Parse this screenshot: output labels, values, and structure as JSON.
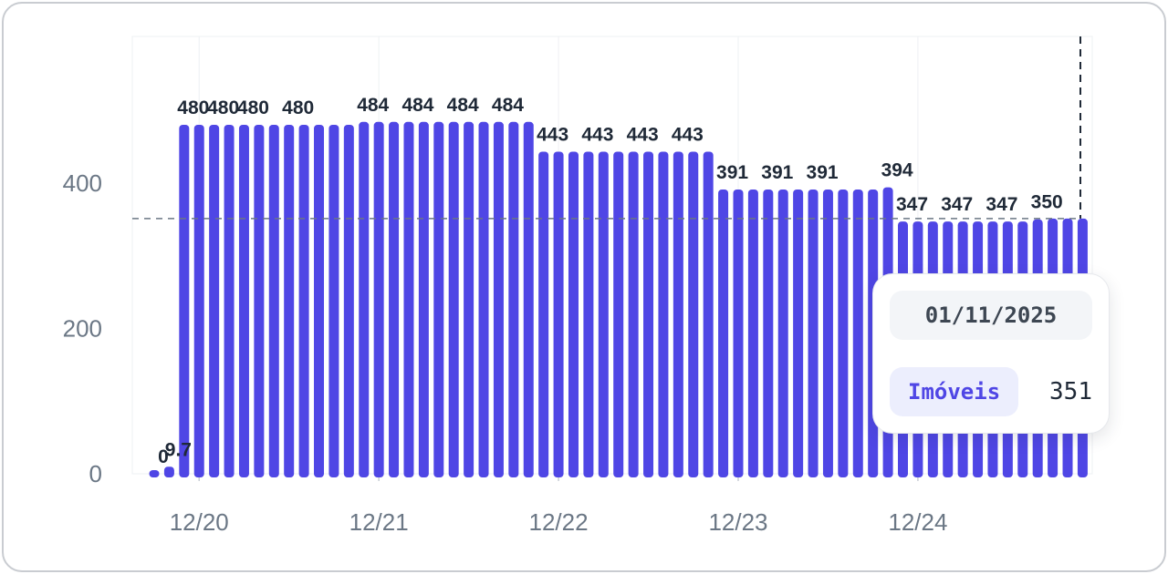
{
  "chart_data": {
    "type": "bar",
    "color": "#4f46e5",
    "ylim": [
      0,
      600
    ],
    "yticks": [
      0,
      200,
      400
    ],
    "xticks": [
      {
        "label": "12/20",
        "index": 3
      },
      {
        "label": "12/21",
        "index": 15
      },
      {
        "label": "12/22",
        "index": 27
      },
      {
        "label": "12/23",
        "index": 39
      },
      {
        "label": "12/24",
        "index": 51
      }
    ],
    "reference_line": 351,
    "values": [
      0,
      9.7,
      480,
      480,
      480,
      480,
      480,
      480,
      480,
      480,
      480,
      480,
      480,
      480,
      484,
      484,
      484,
      484,
      484,
      484,
      484,
      484,
      484,
      484,
      484,
      484,
      443,
      443,
      443,
      443,
      443,
      443,
      443,
      443,
      443,
      443,
      443,
      443,
      391,
      391,
      391,
      391,
      391,
      391,
      391,
      391,
      391,
      391,
      391,
      394,
      347,
      347,
      347,
      347,
      347,
      347,
      347,
      347,
      347,
      350,
      351,
      351,
      351
    ],
    "data_labels": [
      {
        "index": 0,
        "text": "0"
      },
      {
        "index": 1,
        "text": "9.7"
      },
      {
        "index": 2,
        "text": "480"
      },
      {
        "index": 4,
        "text": "480"
      },
      {
        "index": 6,
        "text": "480"
      },
      {
        "index": 9,
        "text": "480"
      },
      {
        "index": 14,
        "text": "484"
      },
      {
        "index": 17,
        "text": "484"
      },
      {
        "index": 20,
        "text": "484"
      },
      {
        "index": 23,
        "text": "484"
      },
      {
        "index": 26,
        "text": "443"
      },
      {
        "index": 29,
        "text": "443"
      },
      {
        "index": 32,
        "text": "443"
      },
      {
        "index": 35,
        "text": "443"
      },
      {
        "index": 38,
        "text": "391"
      },
      {
        "index": 41,
        "text": "391"
      },
      {
        "index": 44,
        "text": "391"
      },
      {
        "index": 49,
        "text": "394"
      },
      {
        "index": 50,
        "text": "347"
      },
      {
        "index": 53,
        "text": "347"
      },
      {
        "index": 56,
        "text": "347"
      },
      {
        "index": 59,
        "text": "350"
      }
    ]
  },
  "tooltip": {
    "date": "01/11/2025",
    "series_label": "Imóveis",
    "value": "351"
  }
}
